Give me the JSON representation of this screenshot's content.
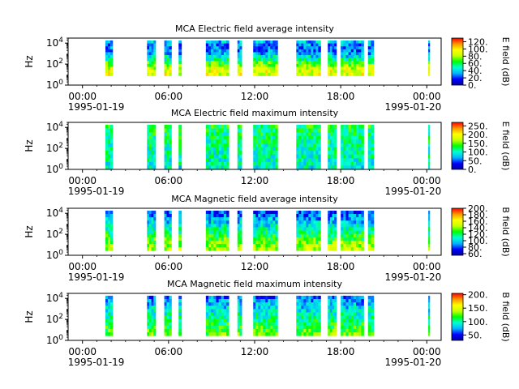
{
  "chart_data": [
    {
      "type": "heatmap",
      "title": "MCA  Electric field average intensity",
      "ylabel": "Hz",
      "y_scale": "log",
      "ylim": [
        1,
        30000
      ],
      "y_ticks": [
        {
          "v": 1,
          "m": "10",
          "e": "0"
        },
        {
          "v": 100,
          "m": "10",
          "e": "2"
        },
        {
          "v": 10000,
          "m": "10",
          "e": "4"
        }
      ],
      "colorbar_label": "E field (dB)",
      "colorbar_range": [
        0,
        130
      ],
      "colorbar_ticks": [
        "0.",
        "20.",
        "40.",
        "60.",
        "80.",
        "100.",
        "120."
      ],
      "colorbar_values": [
        0,
        20,
        40,
        60,
        80,
        100,
        120
      ]
    },
    {
      "type": "heatmap",
      "title": "MCA  Electric field maximum intensity",
      "ylabel": "Hz",
      "y_scale": "log",
      "ylim": [
        1,
        30000
      ],
      "y_ticks": [
        {
          "v": 1,
          "m": "10",
          "e": "0"
        },
        {
          "v": 100,
          "m": "10",
          "e": "2"
        },
        {
          "v": 10000,
          "m": "10",
          "e": "4"
        }
      ],
      "colorbar_label": "E field (dB)",
      "colorbar_range": [
        0,
        270
      ],
      "colorbar_ticks": [
        "0.",
        "50.",
        "100.",
        "150.",
        "200.",
        "250."
      ],
      "colorbar_values": [
        0,
        50,
        100,
        150,
        200,
        250
      ]
    },
    {
      "type": "heatmap",
      "title": "MCA  Magnetic field average intensity",
      "ylabel": "Hz",
      "y_scale": "log",
      "ylim": [
        1,
        30000
      ],
      "y_ticks": [
        {
          "v": 1,
          "m": "10",
          "e": "0"
        },
        {
          "v": 100,
          "m": "10",
          "e": "2"
        },
        {
          "v": 10000,
          "m": "10",
          "e": "4"
        }
      ],
      "colorbar_label": "B field (dB)",
      "colorbar_range": [
        55,
        200
      ],
      "colorbar_ticks": [
        "60.",
        "80.",
        "100.",
        "120.",
        "140.",
        "160.",
        "180.",
        "200."
      ],
      "colorbar_values": [
        60,
        80,
        100,
        120,
        140,
        160,
        180,
        200
      ]
    },
    {
      "type": "heatmap",
      "title": "MCA  Magnetic field maximum intensity",
      "ylabel": "Hz",
      "y_scale": "log",
      "ylim": [
        1,
        30000
      ],
      "y_ticks": [
        {
          "v": 1,
          "m": "10",
          "e": "0"
        },
        {
          "v": 100,
          "m": "10",
          "e": "2"
        },
        {
          "v": 10000,
          "m": "10",
          "e": "4"
        }
      ],
      "colorbar_label": "B field (dB)",
      "colorbar_range": [
        30,
        205
      ],
      "colorbar_ticks": [
        "50.",
        "100.",
        "150.",
        "200."
      ],
      "colorbar_values": [
        50,
        100,
        150,
        200
      ]
    }
  ],
  "x_axis": {
    "range_hours": [
      -1,
      25
    ],
    "tick_hours": [
      0,
      6,
      12,
      18,
      24
    ],
    "tick_labels": [
      "00:00",
      "06:00",
      "12:00",
      "18:00",
      "00:00"
    ],
    "date_labels": [
      "1995-01-19",
      "1995-01-20"
    ],
    "data_blocks_hours": [
      [
        1.6,
        2.1
      ],
      [
        4.5,
        5.1
      ],
      [
        5.7,
        6.2
      ],
      [
        6.7,
        6.9
      ],
      [
        8.6,
        10.2
      ],
      [
        10.8,
        11.1
      ],
      [
        11.9,
        13.6
      ],
      [
        14.9,
        16.6
      ],
      [
        17.1,
        17.7
      ],
      [
        18.0,
        19.6
      ],
      [
        19.9,
        20.3
      ],
      [
        24.1,
        24.2
      ]
    ]
  },
  "colormap": [
    "#0000a0",
    "#0000ff",
    "#00b4ff",
    "#00ffd2",
    "#00ff00",
    "#c8ff00",
    "#ffff00",
    "#ff9600",
    "#ff0000"
  ]
}
